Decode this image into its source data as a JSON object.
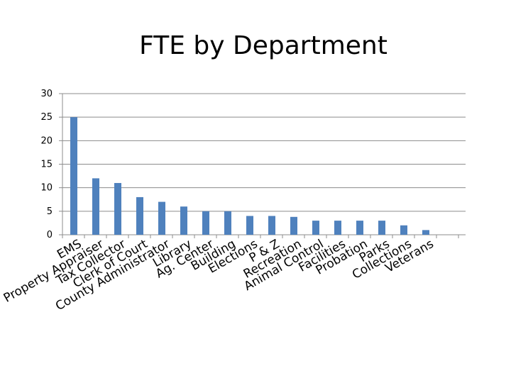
{
  "chart_data": {
    "type": "bar",
    "title": "FTE by Department",
    "xlabel": "",
    "ylabel": "",
    "ylim": [
      0,
      30
    ],
    "yticks": [
      0,
      5,
      10,
      15,
      20,
      25,
      30
    ],
    "grid": true,
    "legend": "none",
    "bar_color": "#4F81BD",
    "grid_color": "#8C8C8C",
    "categories": [
      "EMS",
      "Property Appraiser",
      "Tax Collector",
      "Clerk of Court",
      "County Administrator",
      "Library",
      "Ag. Center",
      "Building",
      "Elections",
      "P & Z",
      "Recreation",
      "Animal Control",
      "Facilities",
      "Probation",
      "Parks",
      "Collections",
      "Veterans"
    ],
    "values": [
      25,
      12,
      11,
      8,
      7,
      6,
      5,
      5,
      4,
      4,
      3.8,
      3,
      3,
      3,
      3,
      2,
      1
    ]
  }
}
